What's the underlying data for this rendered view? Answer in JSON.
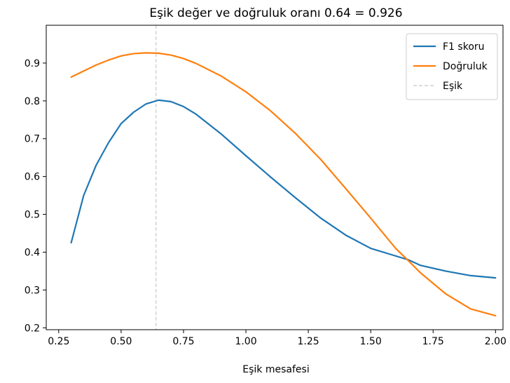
{
  "chart_data": {
    "type": "line",
    "title": "Eşik değer ve doğruluk oranı 0.64 = 0.926",
    "xlabel": "Eşik mesafesi",
    "ylabel": "",
    "xlim": [
      0.2,
      2.03
    ],
    "ylim": [
      0.195,
      1.0
    ],
    "grid": false,
    "legend_position": "top-right",
    "x_ticks": [
      0.25,
      0.5,
      0.75,
      1.0,
      1.25,
      1.5,
      1.75,
      2.0
    ],
    "x_tick_labels": [
      "0.25",
      "0.50",
      "0.75",
      "1.00",
      "1.25",
      "1.50",
      "1.75",
      "2.00"
    ],
    "y_ticks": [
      0.2,
      0.3,
      0.4,
      0.5,
      0.6,
      0.7,
      0.8,
      0.9
    ],
    "y_tick_labels": [
      "0.2",
      "0.3",
      "0.4",
      "0.5",
      "0.6",
      "0.7",
      "0.8",
      "0.9"
    ],
    "x": [
      0.3,
      0.35,
      0.4,
      0.45,
      0.5,
      0.55,
      0.6,
      0.65,
      0.7,
      0.75,
      0.8,
      0.9,
      1.0,
      1.1,
      1.2,
      1.3,
      1.4,
      1.5,
      1.6,
      1.65,
      1.7,
      1.8,
      1.9,
      2.0
    ],
    "series": [
      {
        "name": "F1 skoru",
        "color": "#1f77b4",
        "values": [
          0.425,
          0.55,
          0.63,
          0.69,
          0.74,
          0.77,
          0.792,
          0.802,
          0.798,
          0.785,
          0.765,
          0.713,
          0.655,
          0.598,
          0.543,
          0.49,
          0.445,
          0.41,
          0.39,
          0.38,
          0.365,
          0.35,
          0.338,
          0.332
        ]
      },
      {
        "name": "Doğruluk",
        "color": "#ff7f0e",
        "values": [
          0.863,
          0.879,
          0.895,
          0.908,
          0.919,
          0.925,
          0.927,
          0.926,
          0.921,
          0.912,
          0.899,
          0.866,
          0.824,
          0.773,
          0.713,
          0.645,
          0.568,
          0.49,
          0.41,
          0.378,
          0.345,
          0.29,
          0.25,
          0.232
        ]
      }
    ],
    "vlines": [
      {
        "name": "Eşik",
        "x": 0.64,
        "color": "#c8c8c8",
        "style": "dashed"
      }
    ]
  }
}
